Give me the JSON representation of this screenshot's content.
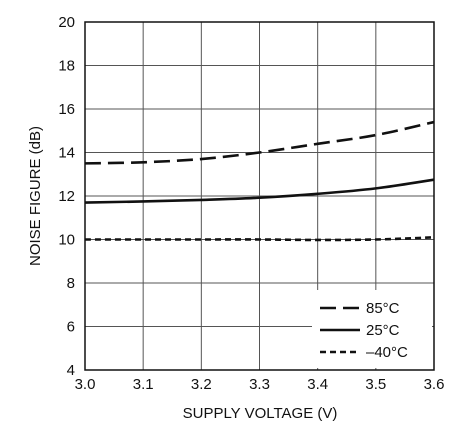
{
  "chart_data": {
    "type": "line",
    "xlabel": "SUPPLY VOLTAGE (V)",
    "ylabel": "NOISE FIGURE (dB)",
    "xlim": [
      3.0,
      3.6
    ],
    "ylim": [
      4,
      20
    ],
    "x_ticks": [
      "3.0",
      "3.1",
      "3.2",
      "3.3",
      "3.4",
      "3.5",
      "3.6"
    ],
    "y_ticks": [
      "4",
      "6",
      "8",
      "10",
      "12",
      "14",
      "16",
      "18",
      "20"
    ],
    "grid": true,
    "legend_position": "bottom-right",
    "series": [
      {
        "name": "85°C",
        "style": "long-dash",
        "points": [
          [
            3.0,
            13.5
          ],
          [
            3.1,
            13.55
          ],
          [
            3.2,
            13.7
          ],
          [
            3.3,
            14.0
          ],
          [
            3.4,
            14.4
          ],
          [
            3.5,
            14.8
          ],
          [
            3.6,
            15.4
          ]
        ]
      },
      {
        "name": "25°C",
        "style": "solid",
        "points": [
          [
            3.0,
            11.7
          ],
          [
            3.1,
            11.75
          ],
          [
            3.2,
            11.82
          ],
          [
            3.3,
            11.92
          ],
          [
            3.4,
            12.1
          ],
          [
            3.5,
            12.35
          ],
          [
            3.6,
            12.75
          ]
        ]
      },
      {
        "name": "–40°C",
        "style": "short-dash",
        "points": [
          [
            3.0,
            10.0
          ],
          [
            3.1,
            10.0
          ],
          [
            3.2,
            10.0
          ],
          [
            3.3,
            10.0
          ],
          [
            3.4,
            9.98
          ],
          [
            3.5,
            10.0
          ],
          [
            3.6,
            10.1
          ]
        ]
      }
    ]
  }
}
